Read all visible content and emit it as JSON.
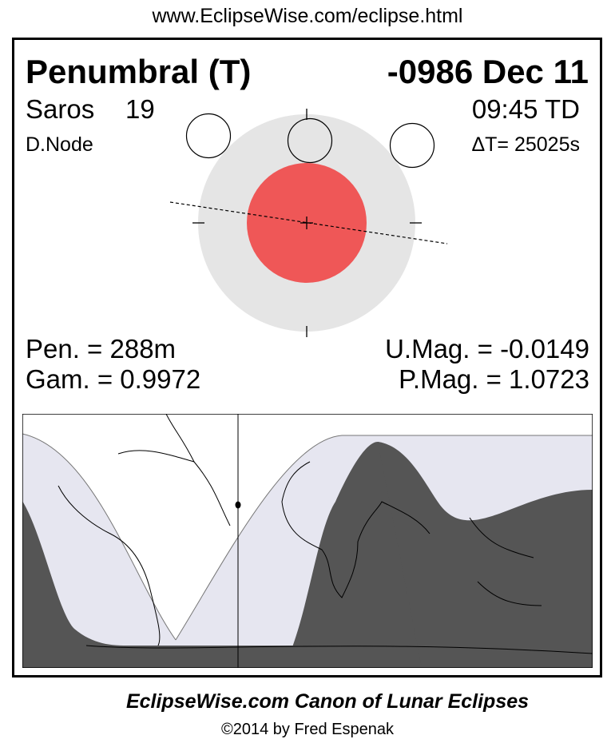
{
  "url": "www.EclipseWise.com/eclipse.html",
  "header": {
    "type": "Penumbral (T)",
    "date": "-0986 Dec 11",
    "saros_label": "Saros",
    "saros_value": "19",
    "time": "09:45 TD",
    "node": "D.Node",
    "delta_t": "ΔT=  25025s"
  },
  "stats": {
    "pen": "Pen. = 288m",
    "gam": "Gam. = 0.9972",
    "umag": "U.Mag. = -0.0149",
    "pmag": "P.Mag. = 1.0723"
  },
  "colors": {
    "umbra": "#ef5757",
    "penumbra": "#e5e5e5",
    "map_penumbral_visible": "#e6e6f0",
    "map_not_visible": "#555555"
  },
  "footer": {
    "title": "EclipseWise.com Canon of Lunar Eclipses",
    "copyright": "©2014 by Fred Espenak"
  }
}
